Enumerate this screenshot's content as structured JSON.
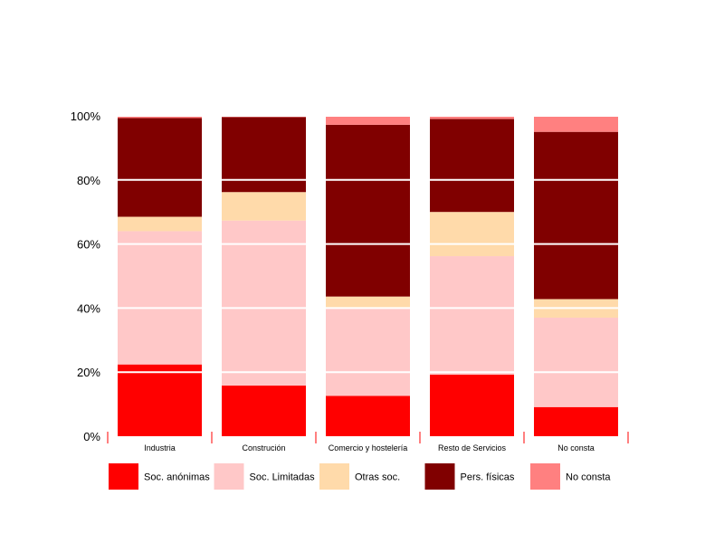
{
  "chart_data": {
    "type": "bar",
    "stacked": true,
    "percent": true,
    "categories": [
      "Industria",
      "Construción",
      "Comercio y hostelería",
      "Resto de Servicios",
      "No consta"
    ],
    "series": [
      {
        "name": "Soc. anónimas",
        "color": "#ff0000",
        "values": [
          22.4,
          15.8,
          12.6,
          19.2,
          9.1
        ]
      },
      {
        "name": "Soc. Limitadas",
        "color": "#ffc8c8",
        "values": [
          41.6,
          51.5,
          27.2,
          37.0,
          27.9
        ]
      },
      {
        "name": "Otras soc.",
        "color": "#ffdaaa",
        "values": [
          4.5,
          8.9,
          3.8,
          13.8,
          5.8
        ]
      },
      {
        "name": "Pers. físicas",
        "color": "#800000",
        "values": [
          30.8,
          23.4,
          53.6,
          29.0,
          52.2
        ]
      },
      {
        "name": "No consta",
        "color": "#ff8080",
        "values": [
          0.7,
          0.4,
          2.8,
          1.0,
          5.0
        ]
      }
    ],
    "yticks": [
      "0%",
      "20%",
      "40%",
      "60%",
      "80%",
      "100%"
    ],
    "ylim": [
      0,
      100
    ],
    "grid": "horizontal",
    "legend": "bottom"
  }
}
